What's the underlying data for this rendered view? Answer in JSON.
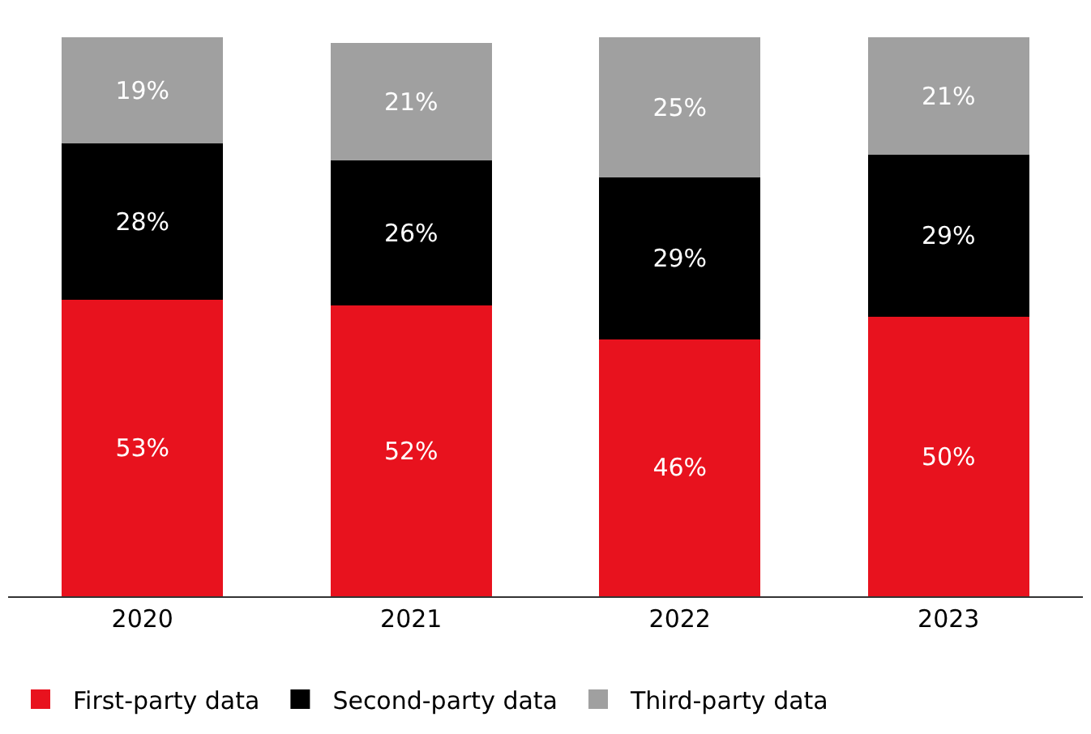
{
  "chart_data": {
    "type": "bar",
    "stacked": true,
    "categories": [
      "2020",
      "2021",
      "2022",
      "2023"
    ],
    "series": [
      {
        "name": "First-party data",
        "color": "#e8121e",
        "values": [
          53,
          52,
          46,
          50
        ],
        "value_labels": [
          "53%",
          "52%",
          "46%",
          "50%"
        ]
      },
      {
        "name": "Second-party data",
        "color": "#000000",
        "values": [
          28,
          26,
          29,
          29
        ],
        "value_labels": [
          "28%",
          "26%",
          "29%",
          "29%"
        ]
      },
      {
        "name": "Third-party data",
        "color": "#a0a0a0",
        "values": [
          19,
          21,
          25,
          21
        ],
        "value_labels": [
          "19%",
          "21%",
          "25%",
          "21%"
        ]
      }
    ],
    "legend": "bottom left",
    "tick_labels": "x"
  }
}
